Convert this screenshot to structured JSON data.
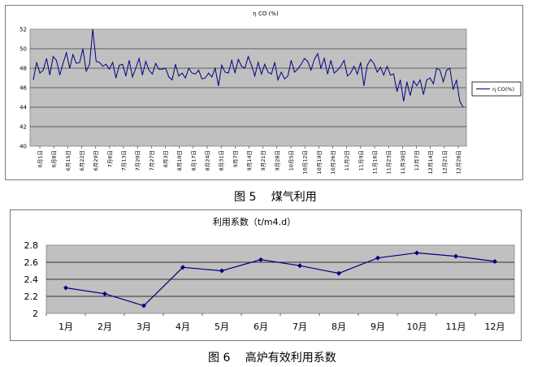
{
  "figure5": {
    "caption": "图 5　 煤气利用",
    "chart_data": {
      "type": "line",
      "title": "η CO (%)",
      "legend": "η CO(%)",
      "legend_position": "right",
      "grid": true,
      "ylim": [
        40,
        52
      ],
      "yticks": [
        "40",
        "42",
        "44",
        "46",
        "48",
        "50",
        "52"
      ],
      "xtick_labels": [
        "6月1日",
        "6月8日",
        "6月15日",
        "6月22日",
        "6月29日",
        "7月6日",
        "7月13日",
        "7月20日",
        "7月27日",
        "8月3日",
        "8月10日",
        "8月17日",
        "8月24日",
        "8月31日",
        "9月7日",
        "9月14日",
        "9月21日",
        "9月28日",
        "10月5日",
        "10月12日",
        "10月19日",
        "10月26日",
        "11月2日",
        "11月9日",
        "11月16日",
        "11月23日",
        "11月30日",
        "12月7日",
        "12月14日",
        "12月21日",
        "12月28日"
      ],
      "series": [
        {
          "name": "η CO(%)",
          "values": [
            46.8,
            48.6,
            47.5,
            47.8,
            49.0,
            47.3,
            49.2,
            48.8,
            47.3,
            48.5,
            49.6,
            48.0,
            49.4,
            48.5,
            48.6,
            50.0,
            47.7,
            48.4,
            52.0,
            48.7,
            48.6,
            48.2,
            48.4,
            47.9,
            48.6,
            47.0,
            48.3,
            48.4,
            47.2,
            48.8,
            47.1,
            48.0,
            49.0,
            47.3,
            48.7,
            47.8,
            47.4,
            48.5,
            47.9,
            47.9,
            48.0,
            47.1,
            46.8,
            48.4,
            47.2,
            47.5,
            47.0,
            48.0,
            47.5,
            47.4,
            47.8,
            46.9,
            47.0,
            47.5,
            47.1,
            48.0,
            46.2,
            48.3,
            47.6,
            47.5,
            48.8,
            47.5,
            48.9,
            48.2,
            48.0,
            49.2,
            48.3,
            47.2,
            48.6,
            47.4,
            48.4,
            47.6,
            47.4,
            48.6,
            46.8,
            47.6,
            46.9,
            47.2,
            48.8,
            47.6,
            47.9,
            48.4,
            49.0,
            48.7,
            47.8,
            48.9,
            49.5,
            48.0,
            49.0,
            47.4,
            48.8,
            47.5,
            47.8,
            48.2,
            48.8,
            47.2,
            47.5,
            48.2,
            47.4,
            48.6,
            46.2,
            48.3,
            48.9,
            48.5,
            47.6,
            48.1,
            47.3,
            48.2,
            47.3,
            47.4,
            45.6,
            46.8,
            44.6,
            46.6,
            45.2,
            46.7,
            46.2,
            46.8,
            45.3,
            46.8,
            47.0,
            46.4,
            48.0,
            47.8,
            46.6,
            47.8,
            48.0,
            45.8,
            46.8,
            44.6,
            44.0
          ]
        }
      ]
    }
  },
  "figure6": {
    "caption": "图 6　 高炉有效利用系数",
    "chart_data": {
      "type": "line",
      "title": "利用系数（t/m4.d）",
      "categories": [
        "1月",
        "2月",
        "3月",
        "4月",
        "5月",
        "6月",
        "7月",
        "8月",
        "9月",
        "10月",
        "11月",
        "12月"
      ],
      "values": [
        2.3,
        2.23,
        2.09,
        2.54,
        2.5,
        2.63,
        2.56,
        2.47,
        2.65,
        2.71,
        2.67,
        2.61
      ],
      "ylim": [
        2.0,
        2.8
      ],
      "yticks": [
        "2",
        "2.2",
        "2.4",
        "2.6",
        "2.8"
      ],
      "grid": true,
      "line_color": "#000080"
    }
  }
}
